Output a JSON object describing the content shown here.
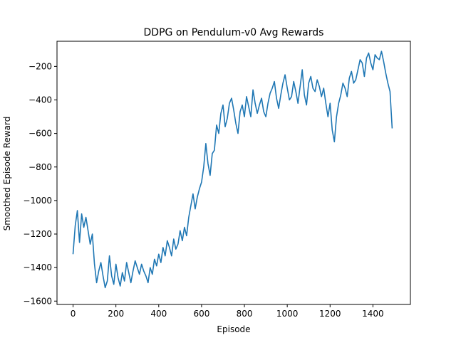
{
  "chart_data": {
    "type": "line",
    "title": "DDPG on Pendulum-v0 Avg Rewards",
    "xlabel": "Episode",
    "ylabel": "Smoothed Episode Reward",
    "xlim": [
      -75,
      1575
    ],
    "ylim": [
      -1620,
      -50
    ],
    "xticks": [
      0,
      200,
      400,
      600,
      800,
      1000,
      1200,
      1400
    ],
    "yticks": [
      -1600,
      -1400,
      -1200,
      -1000,
      -800,
      -600,
      -400,
      -200
    ],
    "grid": false,
    "line_color": "#1f77b4",
    "series": [
      {
        "x": [
          0,
          10,
          20,
          30,
          40,
          50,
          60,
          70,
          80,
          90,
          100,
          110,
          120,
          130,
          140,
          150,
          160,
          170,
          180,
          190,
          200,
          210,
          220,
          230,
          240,
          250,
          260,
          270,
          280,
          290,
          300,
          310,
          320,
          330,
          340,
          350,
          360,
          370,
          380,
          390,
          400,
          410,
          420,
          430,
          440,
          450,
          460,
          470,
          480,
          490,
          500,
          510,
          520,
          530,
          540,
          550,
          560,
          570,
          580,
          590,
          600,
          610,
          620,
          630,
          640,
          650,
          660,
          670,
          680,
          690,
          700,
          710,
          720,
          730,
          740,
          750,
          760,
          770,
          780,
          790,
          800,
          810,
          820,
          830,
          840,
          850,
          860,
          870,
          880,
          890,
          900,
          910,
          920,
          930,
          940,
          950,
          960,
          970,
          980,
          990,
          1000,
          1010,
          1020,
          1030,
          1040,
          1050,
          1060,
          1070,
          1080,
          1090,
          1100,
          1110,
          1120,
          1130,
          1140,
          1150,
          1160,
          1170,
          1180,
          1190,
          1200,
          1210,
          1220,
          1230,
          1240,
          1250,
          1260,
          1270,
          1280,
          1290,
          1300,
          1310,
          1320,
          1330,
          1340,
          1350,
          1360,
          1370,
          1380,
          1390,
          1400,
          1410,
          1420,
          1430,
          1440,
          1450,
          1460,
          1470,
          1480,
          1490
        ],
        "values": [
          -1320,
          -1150,
          -1060,
          -1250,
          -1080,
          -1160,
          -1100,
          -1180,
          -1260,
          -1200,
          -1380,
          -1490,
          -1420,
          -1370,
          -1450,
          -1520,
          -1480,
          -1330,
          -1450,
          -1500,
          -1380,
          -1460,
          -1510,
          -1430,
          -1480,
          -1370,
          -1430,
          -1490,
          -1420,
          -1360,
          -1400,
          -1440,
          -1380,
          -1420,
          -1450,
          -1490,
          -1400,
          -1440,
          -1350,
          -1390,
          -1320,
          -1370,
          -1280,
          -1330,
          -1240,
          -1280,
          -1330,
          -1230,
          -1290,
          -1260,
          -1180,
          -1240,
          -1160,
          -1210,
          -1100,
          -1030,
          -960,
          -1050,
          -980,
          -930,
          -890,
          -800,
          -660,
          -780,
          -850,
          -720,
          -700,
          -550,
          -600,
          -480,
          -430,
          -560,
          -510,
          -420,
          -390,
          -460,
          -540,
          -600,
          -470,
          -430,
          -500,
          -380,
          -440,
          -500,
          -340,
          -420,
          -480,
          -430,
          -390,
          -470,
          -500,
          -420,
          -360,
          -330,
          -290,
          -390,
          -450,
          -370,
          -300,
          -250,
          -330,
          -400,
          -380,
          -290,
          -350,
          -420,
          -320,
          -220,
          -370,
          -430,
          -300,
          -260,
          -330,
          -350,
          -280,
          -320,
          -380,
          -330,
          -420,
          -500,
          -420,
          -580,
          -650,
          -500,
          -420,
          -370,
          -300,
          -330,
          -380,
          -270,
          -230,
          -300,
          -280,
          -220,
          -160,
          -180,
          -260,
          -150,
          -120,
          -180,
          -220,
          -130,
          -150,
          -160,
          -110,
          -170,
          -240,
          -300,
          -350,
          -570
        ]
      }
    ]
  }
}
